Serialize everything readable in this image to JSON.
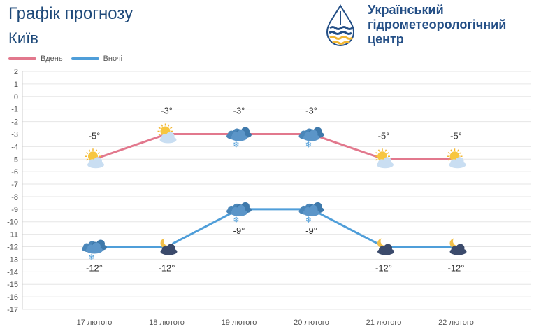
{
  "header": {
    "title": "Графік прогнозу",
    "city": "Київ"
  },
  "logo": {
    "line1": "Український",
    "line2": "гідрометеорологічний",
    "line3": "центр"
  },
  "colors": {
    "day": "#e2788d",
    "night": "#4f9ed9",
    "grid": "#e6e6e6",
    "axis_text": "#555555"
  },
  "chart_data": {
    "type": "line",
    "categories": [
      "17 лютого",
      "18 лютого",
      "19 лютого",
      "20 лютого",
      "21 лютого",
      "22 лютого"
    ],
    "series": [
      {
        "name": "Вдень",
        "values": [
          -5,
          -3,
          -3,
          -3,
          -5,
          -5
        ],
        "labels": [
          "-5°",
          "-3°",
          "-3°",
          "-3°",
          "-5°",
          "-5°"
        ],
        "icons": [
          "sun-cloud-icon",
          "sun-cloud-icon",
          "snow-cloud-icon",
          "snow-cloud-icon",
          "sun-cloud-icon",
          "sun-cloud-icon"
        ]
      },
      {
        "name": "Вночі",
        "values": [
          -12,
          -12,
          -9,
          -9,
          -12,
          -12
        ],
        "labels": [
          "-12°",
          "-12°",
          "-9°",
          "-9°",
          "-12°",
          "-12°"
        ],
        "icons": [
          "snow-cloud-icon",
          "moon-cloud-icon",
          "snow-cloud-icon",
          "snow-cloud-icon",
          "moon-cloud-icon",
          "moon-cloud-icon"
        ]
      }
    ],
    "ylim": [
      -17,
      2
    ],
    "yticks": [
      "2",
      "1",
      "0",
      "-1",
      "-2",
      "-3",
      "-4",
      "-5",
      "-6",
      "-7",
      "-8",
      "-9",
      "-10",
      "-11",
      "-12",
      "-13",
      "-14",
      "-15",
      "-16",
      "-17"
    ],
    "legend_position": "top-left",
    "grid": true
  }
}
